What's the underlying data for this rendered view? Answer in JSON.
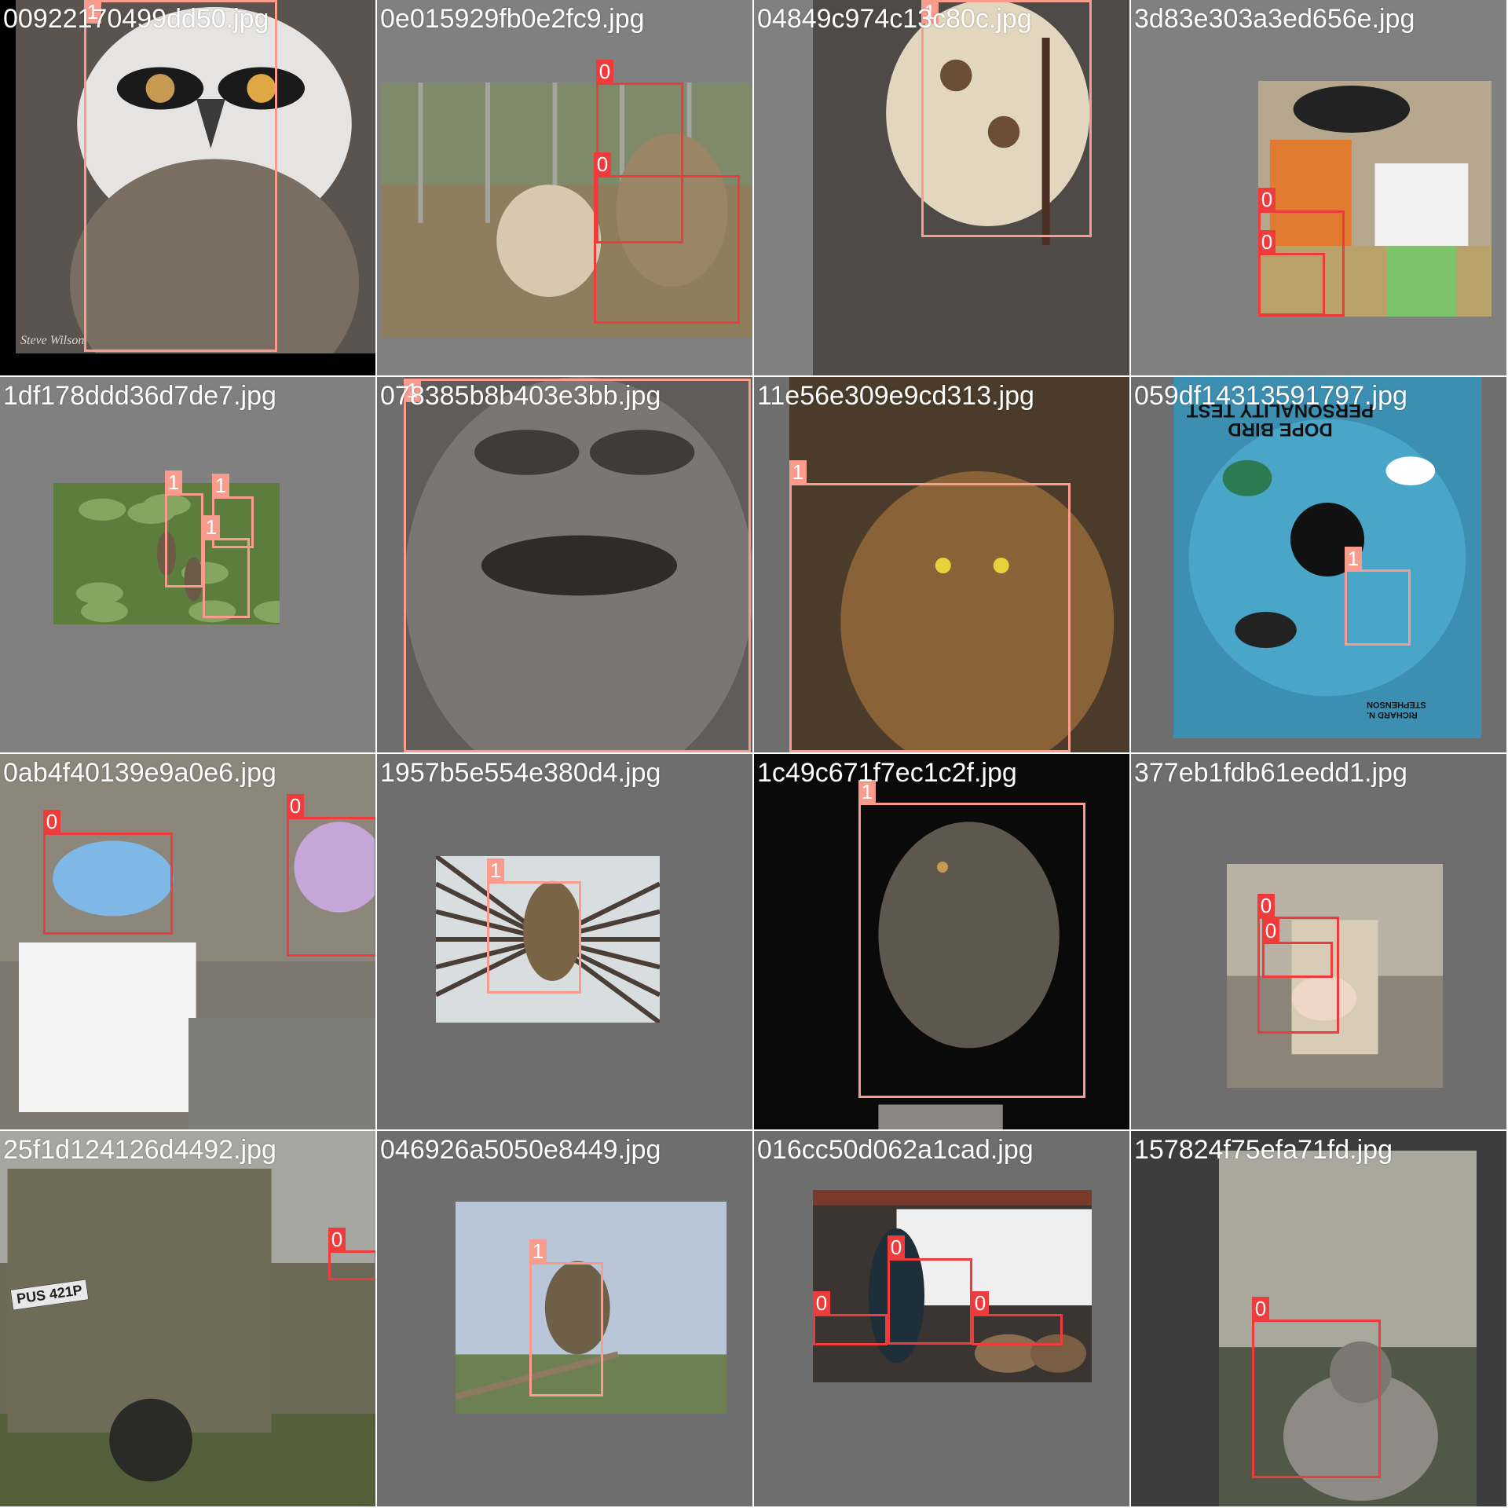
{
  "colors": {
    "class_0_box": "#ef3b3b",
    "class_1_box": "#f99b8d",
    "tile_background": "#808080",
    "tile_background_dark": "#6e6e6e"
  },
  "tiles": [
    {
      "filename": "00922170499dd50.jpg",
      "bg": "#000000",
      "photo_color": "#5a534e",
      "boxes": [
        {
          "cls": "1"
        }
      ]
    },
    {
      "filename": "0e015929fb0e2fc9.jpg",
      "bg": "#808080",
      "photo_color": "#8e7e5e",
      "boxes": [
        {
          "cls": "0"
        },
        {
          "cls": "0"
        }
      ]
    },
    {
      "filename": "04849c974c13c80c.jpg",
      "bg": "#808080",
      "photo_color": "#4d4a47",
      "boxes": [
        {
          "cls": "1"
        }
      ]
    },
    {
      "filename": "3d83e303a3ed656e.jpg",
      "bg": "#808080",
      "photo_color": "#b5a78e",
      "boxes": [
        {
          "cls": "0"
        },
        {
          "cls": "0"
        }
      ]
    },
    {
      "filename": "1df178ddd36d7de7.jpg",
      "bg": "#808080",
      "photo_color": "#4e6b3a",
      "boxes": [
        {
          "cls": "1"
        },
        {
          "cls": "1"
        },
        {
          "cls": "1"
        }
      ]
    },
    {
      "filename": "078385b8b403e3bb.jpg",
      "bg": "#6e6e6e",
      "photo_color": "#5f5c5a",
      "boxes": [
        {
          "cls": "1"
        }
      ]
    },
    {
      "filename": "11e56e309e9cd313.jpg",
      "bg": "#6e6e6e",
      "photo_color": "#4a3b2a",
      "boxes": [
        {
          "cls": "1"
        }
      ]
    },
    {
      "filename": "059df14313591797.jpg",
      "bg": "#6e6e6e",
      "photo_color": "#3d8fb2",
      "boxes": [
        {
          "cls": "1"
        }
      ]
    },
    {
      "filename": "0ab4f40139e9a0e6.jpg",
      "bg": "#808080",
      "photo_color": "#7d786f",
      "boxes": [
        {
          "cls": "0"
        },
        {
          "cls": "0"
        }
      ]
    },
    {
      "filename": "1957b5e554e380d4.jpg",
      "bg": "#6e6e6e",
      "photo_color": "#4e4a44",
      "boxes": [
        {
          "cls": "1"
        }
      ]
    },
    {
      "filename": "1c49c671f7ec1c2f.jpg",
      "bg": "#1a1a1a",
      "photo_color": "#0a0a0a",
      "boxes": [
        {
          "cls": "1"
        }
      ]
    },
    {
      "filename": "377eb1fdb61eedd1.jpg",
      "bg": "#6e6e6e",
      "photo_color": "#8c8478",
      "boxes": [
        {
          "cls": "0"
        },
        {
          "cls": "0"
        }
      ]
    },
    {
      "filename": "25f1d124126d4492.jpg",
      "bg": "#808080",
      "photo_color": "#6b6a58",
      "boxes": [
        {
          "cls": "0"
        }
      ]
    },
    {
      "filename": "046926a5050e8449.jpg",
      "bg": "#6e6e6e",
      "photo_color": "#8ea0b4",
      "boxes": [
        {
          "cls": "1"
        }
      ]
    },
    {
      "filename": "016cc50d062a1cad.jpg",
      "bg": "#6e6e6e",
      "photo_color": "#3a3530",
      "boxes": [
        {
          "cls": "0"
        },
        {
          "cls": "0"
        },
        {
          "cls": "0"
        }
      ]
    },
    {
      "filename": "157824f75efa71fd.jpg",
      "bg": "#3d3d3d",
      "photo_color": "#6b6b62",
      "boxes": [
        {
          "cls": "0"
        }
      ]
    }
  ],
  "embedded_text": {
    "signature": "Steve Wilson",
    "plate": "PUS 421P",
    "book_title": "DOPE BIRD PERSONALITY TEST",
    "book_author": "RICHARD N. STEPHENSON"
  }
}
